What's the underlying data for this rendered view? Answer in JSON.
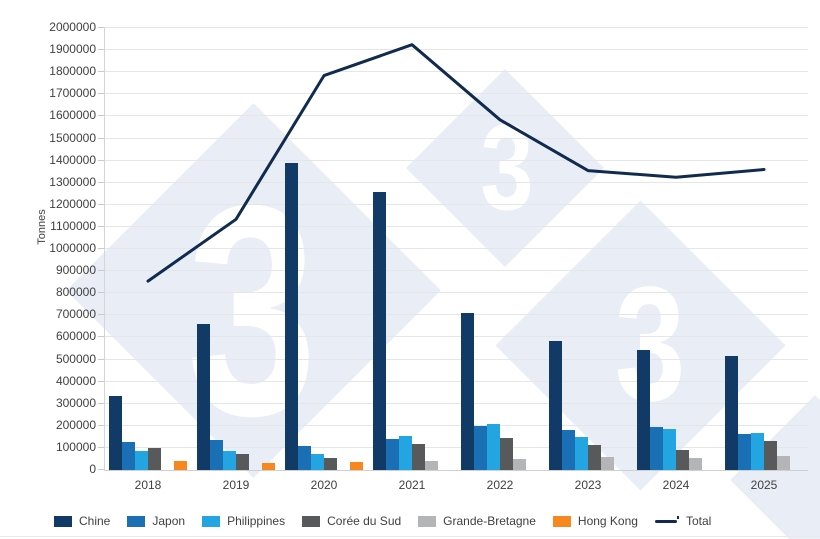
{
  "watermark": {
    "glyph": "3"
  },
  "axes": {
    "y_title": "Tonnes",
    "x_labels": [
      "2018",
      "2019",
      "2020",
      "2021",
      "2022",
      "2023",
      "2024",
      "2025"
    ]
  },
  "colors": {
    "chine": "#123a66",
    "japon": "#1b6fb5",
    "philippines": "#23a5e2",
    "coree_du_sud": "#58595b",
    "grande_bretagne": "#b3b5b7",
    "hong_kong": "#f6881f",
    "total_line": "#102b4e",
    "gridline": "#e5e6e8",
    "watermark_fill": "#e9edf6",
    "text": "#3f3f3f"
  },
  "chart_data": {
    "type": "bar",
    "subtype": "grouped-bars-with-line-overlay",
    "title": "",
    "xlabel": "",
    "ylabel": "Tonnes",
    "ylim": [
      0,
      2000000
    ],
    "ytick_step": 100000,
    "grid": true,
    "legend_position": "bottom",
    "categories": [
      "2018",
      "2019",
      "2020",
      "2021",
      "2022",
      "2023",
      "2024",
      "2025"
    ],
    "series": [
      {
        "name": "Chine",
        "type": "bar",
        "color": "#123a66",
        "values": [
          330000,
          655000,
          1385000,
          1255000,
          705000,
          580000,
          540000,
          510000
        ]
      },
      {
        "name": "Japon",
        "type": "bar",
        "color": "#1b6fb5",
        "values": [
          120000,
          130000,
          105000,
          135000,
          195000,
          175000,
          190000,
          160000
        ]
      },
      {
        "name": "Philippines",
        "type": "bar",
        "color": "#23a5e2",
        "values": [
          80000,
          80000,
          70000,
          150000,
          205000,
          145000,
          180000,
          165000
        ]
      },
      {
        "name": "Corée du Sud",
        "type": "bar",
        "color": "#58595b",
        "values": [
          95000,
          70000,
          50000,
          115000,
          140000,
          110000,
          85000,
          125000
        ]
      },
      {
        "name": "Grande-Bretagne",
        "type": "bar",
        "color": "#b3b5b7",
        "values": [
          0,
          0,
          0,
          35000,
          45000,
          55000,
          50000,
          60000
        ]
      },
      {
        "name": "Hong Kong",
        "type": "bar",
        "color": "#f6881f",
        "values": [
          35000,
          25000,
          30000,
          0,
          0,
          0,
          0,
          0
        ]
      },
      {
        "name": "Total",
        "type": "line",
        "color": "#102b4e",
        "values": [
          850000,
          1130000,
          1780000,
          1920000,
          1580000,
          1350000,
          1320000,
          1355000
        ]
      }
    ]
  }
}
